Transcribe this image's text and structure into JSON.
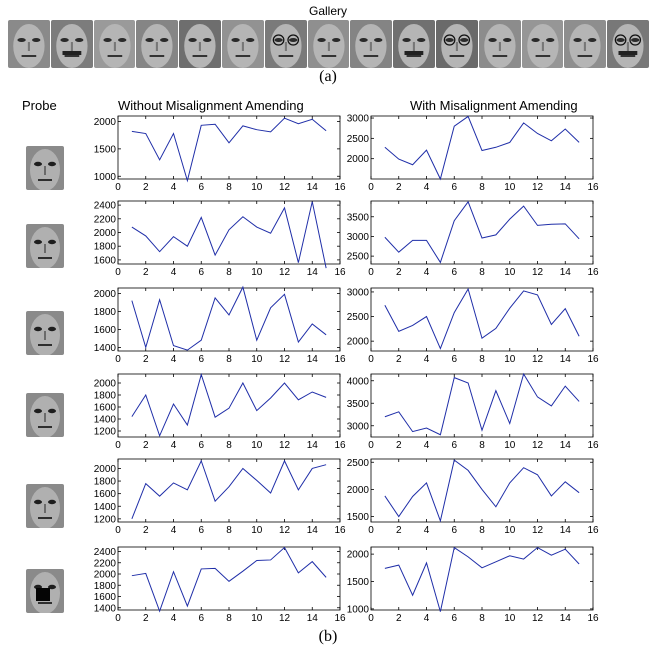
{
  "gallery": {
    "title": "Gallery",
    "faces": 15
  },
  "captions": {
    "a": "(a)",
    "b": "(b)"
  },
  "headers": {
    "probe": "Probe",
    "left": "Without Misalignment Amending",
    "right": "With Misalignment Amending"
  },
  "chart_data": [
    {
      "type": "line",
      "row": 1,
      "panel": "without",
      "x": [
        1,
        2,
        3,
        4,
        5,
        6,
        7,
        8,
        9,
        10,
        11,
        12,
        13,
        14,
        15
      ],
      "values": [
        1820,
        1780,
        1300,
        1780,
        920,
        1930,
        1950,
        1610,
        1920,
        1850,
        1810,
        2060,
        1960,
        2040,
        1830
      ],
      "ylim": [
        950,
        2100
      ],
      "yticks": [
        1000,
        1500,
        2000
      ],
      "xlim": [
        0,
        16
      ],
      "xticks": [
        0,
        2,
        4,
        6,
        8,
        10,
        12,
        14,
        16
      ]
    },
    {
      "type": "line",
      "row": 1,
      "panel": "with",
      "x": [
        1,
        2,
        3,
        4,
        5,
        6,
        7,
        8,
        9,
        10,
        11,
        12,
        13,
        14,
        15
      ],
      "values": [
        2280,
        1990,
        1850,
        2210,
        1500,
        2800,
        3040,
        2200,
        2280,
        2400,
        2880,
        2620,
        2440,
        2730,
        2400
      ],
      "ylim": [
        1500,
        3050
      ],
      "yticks": [
        2000,
        2500,
        3000
      ],
      "xlim": [
        0,
        16
      ],
      "xticks": [
        0,
        2,
        4,
        6,
        8,
        10,
        12,
        14,
        16
      ]
    },
    {
      "type": "line",
      "row": 2,
      "panel": "without",
      "x": [
        1,
        2,
        3,
        4,
        5,
        6,
        7,
        8,
        9,
        10,
        11,
        12,
        13,
        14,
        15
      ],
      "values": [
        2080,
        1950,
        1720,
        1940,
        1800,
        2220,
        1670,
        2040,
        2230,
        2080,
        1990,
        2360,
        1560,
        2450,
        1480
      ],
      "ylim": [
        1540,
        2460
      ],
      "yticks": [
        1600,
        1800,
        2000,
        2200,
        2400
      ],
      "xlim": [
        0,
        16
      ],
      "xticks": [
        0,
        2,
        4,
        6,
        8,
        10,
        12,
        14,
        16
      ]
    },
    {
      "type": "line",
      "row": 2,
      "panel": "with",
      "x": [
        1,
        2,
        3,
        4,
        5,
        6,
        7,
        8,
        9,
        10,
        11,
        12,
        13,
        14,
        15
      ],
      "values": [
        2980,
        2600,
        2900,
        2900,
        2340,
        3400,
        3880,
        2960,
        3040,
        3440,
        3770,
        3280,
        3310,
        3320,
        2940
      ],
      "ylim": [
        2300,
        3900
      ],
      "yticks": [
        2500,
        3000,
        3500
      ],
      "xlim": [
        0,
        16
      ],
      "xticks": [
        0,
        2,
        4,
        6,
        8,
        10,
        12,
        14,
        16
      ]
    },
    {
      "type": "line",
      "row": 3,
      "panel": "without",
      "x": [
        1,
        2,
        3,
        4,
        5,
        6,
        7,
        8,
        9,
        10,
        11,
        12,
        13,
        14,
        15
      ],
      "values": [
        1920,
        1400,
        1930,
        1420,
        1370,
        1480,
        1950,
        1760,
        2070,
        1480,
        1840,
        1990,
        1460,
        1660,
        1540
      ],
      "ylim": [
        1360,
        2060
      ],
      "yticks": [
        1400,
        1600,
        1800,
        2000
      ],
      "xlim": [
        0,
        16
      ],
      "xticks": [
        0,
        2,
        4,
        6,
        8,
        10,
        12,
        14,
        16
      ]
    },
    {
      "type": "line",
      "row": 3,
      "panel": "with",
      "x": [
        1,
        2,
        3,
        4,
        5,
        6,
        7,
        8,
        9,
        10,
        11,
        12,
        13,
        14,
        15
      ],
      "values": [
        2730,
        2200,
        2320,
        2500,
        1850,
        2580,
        3060,
        2060,
        2260,
        2670,
        3020,
        2940,
        2340,
        2660,
        2100
      ],
      "ylim": [
        1800,
        3080
      ],
      "yticks": [
        2000,
        2500,
        3000
      ],
      "xlim": [
        0,
        16
      ],
      "xticks": [
        0,
        2,
        4,
        6,
        8,
        10,
        12,
        14,
        16
      ]
    },
    {
      "type": "line",
      "row": 4,
      "panel": "without",
      "x": [
        1,
        2,
        3,
        4,
        5,
        6,
        7,
        8,
        9,
        10,
        11,
        12,
        13,
        14,
        15
      ],
      "values": [
        1440,
        1800,
        1120,
        1650,
        1300,
        2140,
        1430,
        1580,
        2000,
        1540,
        1750,
        2000,
        1720,
        1850,
        1760
      ],
      "ylim": [
        1100,
        2150
      ],
      "yticks": [
        1200,
        1400,
        1600,
        1800,
        2000
      ],
      "xlim": [
        0,
        16
      ],
      "xticks": [
        0,
        2,
        4,
        6,
        8,
        10,
        12,
        14,
        16
      ]
    },
    {
      "type": "line",
      "row": 4,
      "panel": "with",
      "x": [
        1,
        2,
        3,
        4,
        5,
        6,
        7,
        8,
        9,
        10,
        11,
        12,
        13,
        14,
        15
      ],
      "values": [
        3200,
        3310,
        2870,
        2950,
        2800,
        4070,
        3950,
        2900,
        3780,
        3050,
        4150,
        3640,
        3440,
        3880,
        3540
      ],
      "ylim": [
        2750,
        4150
      ],
      "yticks": [
        3000,
        3500,
        4000
      ],
      "xlim": [
        0,
        16
      ],
      "xticks": [
        0,
        2,
        4,
        6,
        8,
        10,
        12,
        14,
        16
      ]
    },
    {
      "type": "line",
      "row": 5,
      "panel": "without",
      "x": [
        1,
        2,
        3,
        4,
        5,
        6,
        7,
        8,
        9,
        10,
        11,
        12,
        13,
        14,
        15
      ],
      "values": [
        1200,
        1760,
        1560,
        1770,
        1660,
        2120,
        1480,
        1710,
        2000,
        1810,
        1610,
        2120,
        1660,
        2000,
        2060
      ],
      "ylim": [
        1150,
        2150
      ],
      "yticks": [
        1200,
        1400,
        1600,
        1800,
        2000
      ],
      "xlim": [
        0,
        16
      ],
      "xticks": [
        0,
        2,
        4,
        6,
        8,
        10,
        12,
        14,
        16
      ]
    },
    {
      "type": "line",
      "row": 5,
      "panel": "with",
      "x": [
        1,
        2,
        3,
        4,
        5,
        6,
        7,
        8,
        9,
        10,
        11,
        12,
        13,
        14,
        15
      ],
      "values": [
        1880,
        1500,
        1870,
        2120,
        1420,
        2540,
        2350,
        2000,
        1680,
        2120,
        2400,
        2270,
        1880,
        2140,
        1940
      ],
      "ylim": [
        1400,
        2560
      ],
      "yticks": [
        1500,
        2000,
        2500
      ],
      "xlim": [
        0,
        16
      ],
      "xticks": [
        0,
        2,
        4,
        6,
        8,
        10,
        12,
        14,
        16
      ]
    },
    {
      "type": "line",
      "row": 6,
      "panel": "without",
      "x": [
        1,
        2,
        3,
        4,
        5,
        6,
        7,
        8,
        9,
        10,
        11,
        12,
        13,
        14,
        15
      ],
      "values": [
        1970,
        2010,
        1340,
        2040,
        1430,
        2090,
        2100,
        1870,
        2050,
        2240,
        2250,
        2470,
        2020,
        2220,
        1940
      ],
      "ylim": [
        1360,
        2480
      ],
      "yticks": [
        1400,
        1600,
        1800,
        2000,
        2200,
        2400
      ],
      "xlim": [
        0,
        16
      ],
      "xticks": [
        0,
        2,
        4,
        6,
        8,
        10,
        12,
        14,
        16
      ]
    },
    {
      "type": "line",
      "row": 6,
      "panel": "with",
      "x": [
        1,
        2,
        3,
        4,
        5,
        6,
        7,
        8,
        9,
        10,
        11,
        12,
        13,
        14,
        15
      ],
      "values": [
        1740,
        1800,
        1250,
        1840,
        950,
        2120,
        1950,
        1750,
        1860,
        1970,
        1910,
        2120,
        1980,
        2090,
        1820
      ],
      "ylim": [
        980,
        2130
      ],
      "yticks": [
        1000,
        1500,
        2000
      ],
      "xlim": [
        0,
        16
      ],
      "xticks": [
        0,
        2,
        4,
        6,
        8,
        10,
        12,
        14,
        16
      ]
    }
  ]
}
